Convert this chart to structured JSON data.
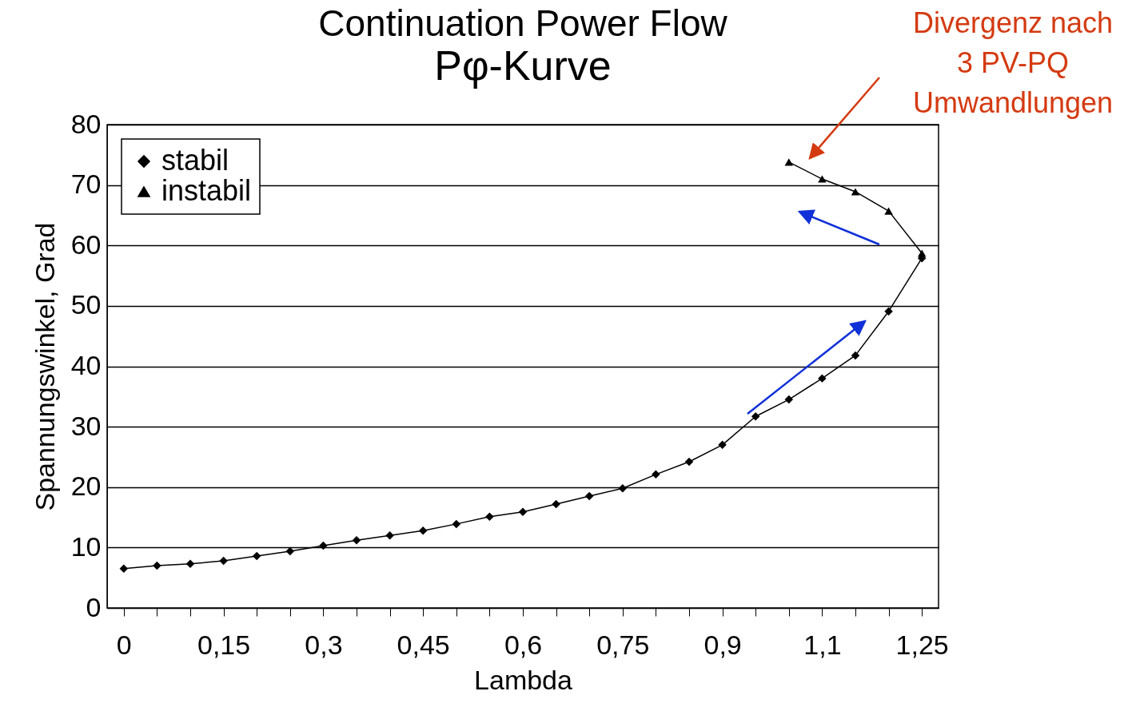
{
  "chart_data": {
    "type": "line",
    "title": "Continuation Power Flow",
    "subtitle": "Pφ-Kurve",
    "xlabel": "Lambda",
    "ylabel": "Spannungswinkel, Grad",
    "categories": [
      "0",
      null,
      null,
      "0,15",
      null,
      null,
      "0,3",
      null,
      null,
      "0,45",
      null,
      null,
      "0,6",
      null,
      null,
      "0,75",
      null,
      null,
      "0,9",
      null,
      null,
      "1,1",
      null,
      null,
      "1,25"
    ],
    "series": [
      {
        "name": "stabil",
        "color": "#000000",
        "marker": "diamond",
        "values": [
          6.5,
          7.0,
          7.3,
          7.8,
          8.6,
          9.4,
          10.3,
          11.2,
          12.0,
          12.8,
          13.9,
          15.1,
          15.9,
          17.2,
          18.5,
          19.8,
          22.1,
          24.2,
          27.0,
          31.7,
          34.5,
          38.0,
          41.8,
          49.1,
          57.9
        ]
      },
      {
        "name": "instabil",
        "color": "#000000",
        "marker": "triangle",
        "values": [
          null,
          null,
          null,
          null,
          null,
          null,
          null,
          null,
          null,
          null,
          null,
          null,
          null,
          null,
          null,
          null,
          null,
          null,
          null,
          null,
          73.8,
          71.0,
          68.9,
          65.7,
          58.7
        ]
      }
    ],
    "ylim": [
      0,
      80
    ],
    "yticks": [
      0,
      10,
      20,
      30,
      40,
      50,
      60,
      70,
      80
    ],
    "grid": "y",
    "legend": "top left",
    "annotations": [
      "Divergenz nach 3 PV-PQ Umwandlungen"
    ]
  }
}
